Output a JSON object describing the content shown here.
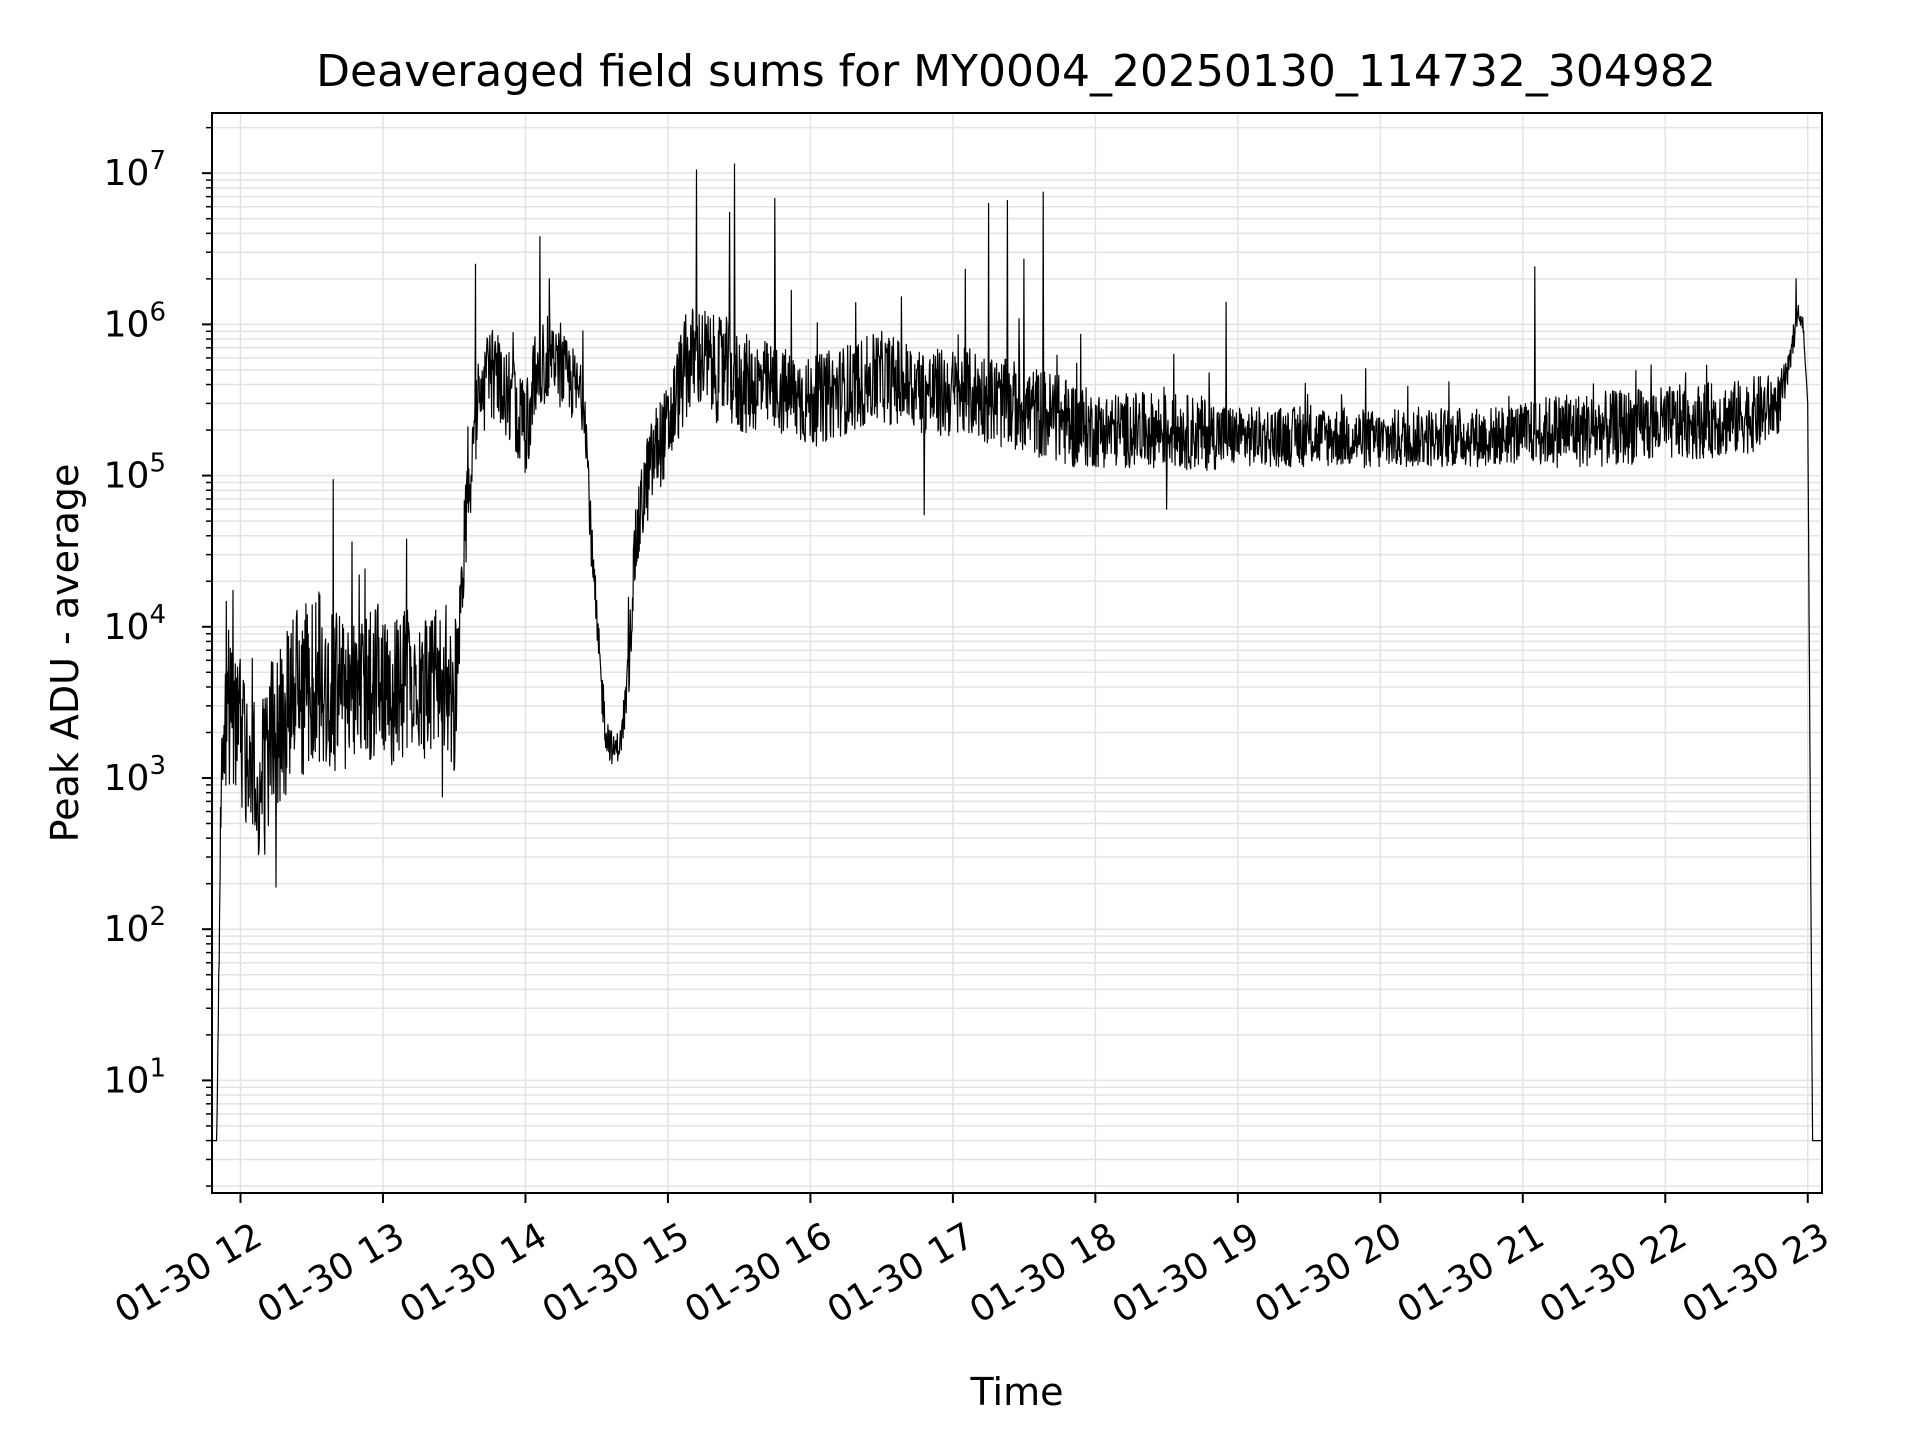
{
  "chart_data": {
    "type": "line",
    "title": "Deaveraged field sums for MY0004_20250130_114732_304982",
    "xlabel": "Time",
    "ylabel": "Peak ADU - average",
    "x_is_time": true,
    "xlim": [
      "2025-01-30 11:48",
      "2025-01-30 23:06"
    ],
    "x_ticks": [
      {
        "value": "2025-01-30 12:00",
        "label": "01-30 12"
      },
      {
        "value": "2025-01-30 13:00",
        "label": "01-30 13"
      },
      {
        "value": "2025-01-30 14:00",
        "label": "01-30 14"
      },
      {
        "value": "2025-01-30 15:00",
        "label": "01-30 15"
      },
      {
        "value": "2025-01-30 16:00",
        "label": "01-30 16"
      },
      {
        "value": "2025-01-30 17:00",
        "label": "01-30 17"
      },
      {
        "value": "2025-01-30 18:00",
        "label": "01-30 18"
      },
      {
        "value": "2025-01-30 19:00",
        "label": "01-30 19"
      },
      {
        "value": "2025-01-30 20:00",
        "label": "01-30 20"
      },
      {
        "value": "2025-01-30 21:00",
        "label": "01-30 21"
      },
      {
        "value": "2025-01-30 22:00",
        "label": "01-30 22"
      },
      {
        "value": "2025-01-30 23:00",
        "label": "01-30 23"
      }
    ],
    "y_scale": "log",
    "ylim": [
      1.8,
      25000000.0
    ],
    "y_ticks": [
      {
        "value": 10,
        "base": "10",
        "exp": "1"
      },
      {
        "value": 100,
        "base": "10",
        "exp": "2"
      },
      {
        "value": 1000,
        "base": "10",
        "exp": "3"
      },
      {
        "value": 10000,
        "base": "10",
        "exp": "4"
      },
      {
        "value": 100000,
        "base": "10",
        "exp": "5"
      },
      {
        "value": 1000000,
        "base": "10",
        "exp": "6"
      },
      {
        "value": 10000000,
        "base": "10",
        "exp": "7"
      }
    ],
    "grid": true,
    "colors": {
      "line": "#000000",
      "grid": "#e3e3e3",
      "frame": "#000000"
    },
    "series": [
      {
        "x": [
          "2025-01-30 11:48",
          "2025-01-30 11:50",
          "2025-01-30 11:52",
          "2025-01-30 11:55",
          "2025-01-30 12:00",
          "2025-01-30 12:05",
          "2025-01-30 12:10",
          "2025-01-30 12:15",
          "2025-01-30 12:20",
          "2025-01-30 12:25",
          "2025-01-30 12:30",
          "2025-01-30 12:35",
          "2025-01-30 12:40",
          "2025-01-30 12:45",
          "2025-01-30 12:50",
          "2025-01-30 12:55",
          "2025-01-30 13:00",
          "2025-01-30 13:05",
          "2025-01-30 13:10",
          "2025-01-30 13:15",
          "2025-01-30 13:20",
          "2025-01-30 13:25",
          "2025-01-30 13:30",
          "2025-01-30 13:33",
          "2025-01-30 13:36",
          "2025-01-30 13:40",
          "2025-01-30 13:45",
          "2025-01-30 13:50",
          "2025-01-30 13:55",
          "2025-01-30 14:00",
          "2025-01-30 14:05",
          "2025-01-30 14:10",
          "2025-01-30 14:15",
          "2025-01-30 14:20",
          "2025-01-30 14:25",
          "2025-01-30 14:28",
          "2025-01-30 14:31",
          "2025-01-30 14:34",
          "2025-01-30 14:37",
          "2025-01-30 14:40",
          "2025-01-30 14:43",
          "2025-01-30 14:46",
          "2025-01-30 14:50",
          "2025-01-30 14:55",
          "2025-01-30 15:00",
          "2025-01-30 15:05",
          "2025-01-30 15:10",
          "2025-01-30 15:15",
          "2025-01-30 15:20",
          "2025-01-30 15:25",
          "2025-01-30 15:30",
          "2025-01-30 15:40",
          "2025-01-30 15:50",
          "2025-01-30 16:00",
          "2025-01-30 16:10",
          "2025-01-30 16:20",
          "2025-01-30 16:30",
          "2025-01-30 16:40",
          "2025-01-30 16:50",
          "2025-01-30 17:00",
          "2025-01-30 17:10",
          "2025-01-30 17:20",
          "2025-01-30 17:30",
          "2025-01-30 17:40",
          "2025-01-30 17:50",
          "2025-01-30 18:00",
          "2025-01-30 18:15",
          "2025-01-30 18:30",
          "2025-01-30 18:45",
          "2025-01-30 19:00",
          "2025-01-30 19:15",
          "2025-01-30 19:30",
          "2025-01-30 19:45",
          "2025-01-30 20:00",
          "2025-01-30 20:15",
          "2025-01-30 20:30",
          "2025-01-30 20:45",
          "2025-01-30 21:00",
          "2025-01-30 21:15",
          "2025-01-30 21:30",
          "2025-01-30 21:45",
          "2025-01-30 22:00",
          "2025-01-30 22:15",
          "2025-01-30 22:30",
          "2025-01-30 22:40",
          "2025-01-30 22:48",
          "2025-01-30 22:52",
          "2025-01-30 22:56",
          "2025-01-30 22:58",
          "2025-01-30 23:00",
          "2025-01-30 23:01",
          "2025-01-30 23:02",
          "2025-01-30 23:06"
        ],
        "y": [
          4,
          4,
          1500,
          2500,
          2000,
          1200,
          900,
          2500,
          3000,
          3500,
          5000,
          4000,
          4000,
          3000,
          3500,
          4000,
          5000,
          3500,
          4500,
          4000,
          4000,
          5000,
          3000,
          20000,
          80000,
          300000,
          500000,
          400000,
          300000,
          200000,
          500000,
          600000,
          500000,
          400000,
          300000,
          30000,
          6000,
          2000,
          1500,
          1700,
          4000,
          30000,
          80000,
          150000,
          200000,
          400000,
          600000,
          600000,
          500000,
          500000,
          400000,
          400000,
          350000,
          300000,
          350000,
          400000,
          450000,
          400000,
          350000,
          350000,
          350000,
          300000,
          280000,
          250000,
          220000,
          200000,
          200000,
          200000,
          190000,
          180000,
          180000,
          180000,
          180000,
          170000,
          180000,
          180000,
          180000,
          190000,
          200000,
          200000,
          210000,
          220000,
          230000,
          240000,
          260000,
          300000,
          500000,
          1200000,
          1000000,
          300000,
          1000,
          4,
          4
        ],
        "noise_amplitude_decades": [
          0,
          0,
          0.25,
          0.5,
          0.5,
          0.5,
          0.6,
          0.6,
          0.6,
          0.6,
          0.6,
          0.6,
          0.6,
          0.5,
          0.5,
          0.5,
          0.5,
          0.5,
          0.5,
          0.5,
          0.5,
          0.5,
          0.5,
          0.3,
          0.3,
          0.3,
          0.3,
          0.3,
          0.3,
          0.3,
          0.3,
          0.3,
          0.25,
          0.25,
          0.2,
          0.2,
          0.2,
          0.15,
          0.1,
          0.1,
          0.2,
          0.25,
          0.3,
          0.3,
          0.3,
          0.35,
          0.35,
          0.35,
          0.35,
          0.35,
          0.35,
          0.3,
          0.3,
          0.3,
          0.3,
          0.3,
          0.3,
          0.3,
          0.3,
          0.3,
          0.3,
          0.3,
          0.3,
          0.3,
          0.3,
          0.25,
          0.25,
          0.25,
          0.25,
          0.2,
          0.2,
          0.2,
          0.2,
          0.2,
          0.2,
          0.2,
          0.2,
          0.2,
          0.25,
          0.25,
          0.25,
          0.25,
          0.25,
          0.25,
          0.25,
          0.2,
          0.1,
          0.05,
          0.05,
          0,
          0,
          0,
          0
        ],
        "spikes": [
          {
            "x": "2025-01-30 11:55",
            "y": 9500
          },
          {
            "x": "2025-01-30 12:15",
            "y": 190
          },
          {
            "x": "2025-01-30 12:50",
            "y": 22000
          },
          {
            "x": "2025-01-30 13:10",
            "y": 38000
          },
          {
            "x": "2025-01-30 13:25",
            "y": 750
          },
          {
            "x": "2025-01-30 13:39",
            "y": 2500000
          },
          {
            "x": "2025-01-30 14:06",
            "y": 3800000
          },
          {
            "x": "2025-01-30 14:10",
            "y": 2000000
          },
          {
            "x": "2025-01-30 15:12",
            "y": 10500000
          },
          {
            "x": "2025-01-30 15:26",
            "y": 5500000
          },
          {
            "x": "2025-01-30 15:28",
            "y": 11500000
          },
          {
            "x": "2025-01-30 15:45",
            "y": 6800000
          },
          {
            "x": "2025-01-30 16:48",
            "y": 55000
          },
          {
            "x": "2025-01-30 17:15",
            "y": 6300000
          },
          {
            "x": "2025-01-30 17:23",
            "y": 6600000
          },
          {
            "x": "2025-01-30 17:30",
            "y": 2700000
          },
          {
            "x": "2025-01-30 17:38",
            "y": 7500000
          },
          {
            "x": "2025-01-30 18:30",
            "y": 60000
          },
          {
            "x": "2025-01-30 18:55",
            "y": 1400000
          },
          {
            "x": "2025-01-30 21:05",
            "y": 2400000
          },
          {
            "x": "2025-01-30 22:55",
            "y": 2000000
          }
        ]
      }
    ]
  }
}
